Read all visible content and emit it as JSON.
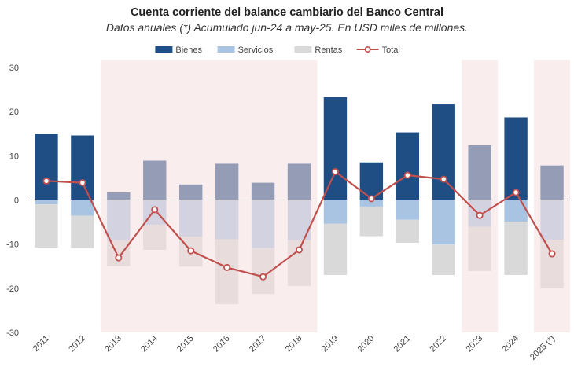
{
  "chart_data": {
    "type": "bar",
    "title": "Cuenta corriente del balance cambiario del Banco Central",
    "subtitle": "Datos anuales (*) Acumulado jun-24 a may-25. En USD miles de millones.",
    "categories": [
      "2011",
      "2012",
      "2013",
      "2014",
      "2015",
      "2016",
      "2017",
      "2018",
      "2019",
      "2020",
      "2021",
      "2022",
      "2023",
      "2024",
      "2025 (*)"
    ],
    "stacked": true,
    "ylim": [
      -30,
      30
    ],
    "yticks": [
      -30,
      -20,
      -10,
      0,
      10,
      20,
      30
    ],
    "grid": false,
    "legend_position": "top",
    "highlighted_categories": [
      "2013",
      "2014",
      "2015",
      "2016",
      "2017",
      "2018",
      "2023",
      "2025 (*)"
    ],
    "highlight_color": "#f6dede",
    "series": [
      {
        "name": "Bienes",
        "kind": "bar",
        "color": "#1f4e85",
        "values": [
          15.0,
          14.6,
          1.7,
          8.9,
          3.5,
          8.2,
          3.9,
          8.2,
          23.3,
          8.5,
          15.3,
          21.8,
          12.4,
          18.7,
          7.8
        ]
      },
      {
        "name": "Servicios",
        "kind": "bar",
        "color": "#a9c4e2",
        "values": [
          -1.0,
          -3.6,
          -9.1,
          -5.6,
          -8.3,
          -8.9,
          -10.9,
          -9.1,
          -5.4,
          -1.5,
          -4.5,
          -10.1,
          -6.1,
          -4.9,
          -9.0
        ]
      },
      {
        "name": "Rentas",
        "kind": "bar",
        "color": "#d9d9d9",
        "values": [
          -9.8,
          -7.3,
          -5.9,
          -5.7,
          -6.8,
          -14.7,
          -10.4,
          -10.4,
          -11.6,
          -6.7,
          -5.2,
          -6.9,
          -10.0,
          -12.1,
          -11.0
        ]
      },
      {
        "name": "Total",
        "kind": "line",
        "color": "#c0504d",
        "values": [
          4.3,
          3.9,
          -13.1,
          -2.2,
          -11.5,
          -15.3,
          -17.4,
          -11.3,
          6.4,
          0.3,
          5.6,
          4.7,
          -3.5,
          1.7,
          -12.2
        ]
      }
    ]
  }
}
